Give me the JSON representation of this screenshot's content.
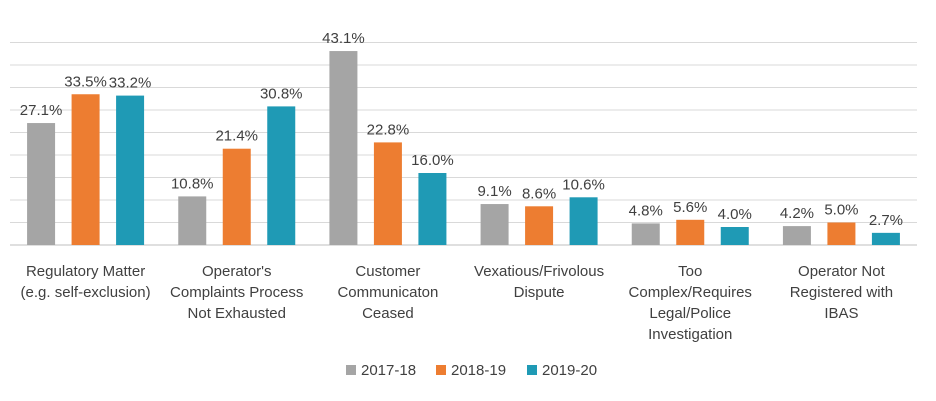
{
  "chart_data": {
    "type": "bar",
    "title": "",
    "xlabel": "",
    "ylabel": "",
    "ylim": [
      0,
      50
    ],
    "grid": true,
    "legend_position": "bottom",
    "categories": [
      [
        "Regulatory Matter",
        "(e.g. self-exclusion)"
      ],
      [
        "Operator's",
        "Complaints Process",
        "Not Exhausted"
      ],
      [
        "Customer",
        "Communicaton",
        "Ceased"
      ],
      [
        "Vexatious/Frivolous",
        "Dispute"
      ],
      [
        "Too",
        "Complex/Requires",
        "Legal/Police",
        "Investigation"
      ],
      [
        "Operator Not",
        "Registered with",
        "IBAS"
      ]
    ],
    "series": [
      {
        "name": "2017-18",
        "color": "#a5a5a5",
        "values": [
          27.1,
          10.8,
          43.1,
          9.1,
          4.8,
          4.2
        ],
        "labels": [
          "27.1%",
          "10.8%",
          "43.1%",
          "9.1%",
          "4.8%",
          "4.2%"
        ]
      },
      {
        "name": "2018-19",
        "color": "#ed7d31",
        "values": [
          33.5,
          21.4,
          22.8,
          8.6,
          5.6,
          5.0
        ],
        "labels": [
          "33.5%",
          "21.4%",
          "22.8%",
          "8.6%",
          "5.6%",
          "5.0%"
        ]
      },
      {
        "name": "2019-20",
        "color": "#1f9ab5",
        "values": [
          33.2,
          30.8,
          16.0,
          10.6,
          4.0,
          2.7
        ],
        "labels": [
          "33.2%",
          "30.8%",
          "16.0%",
          "10.6%",
          "4.0%",
          "2.7%"
        ]
      }
    ]
  }
}
